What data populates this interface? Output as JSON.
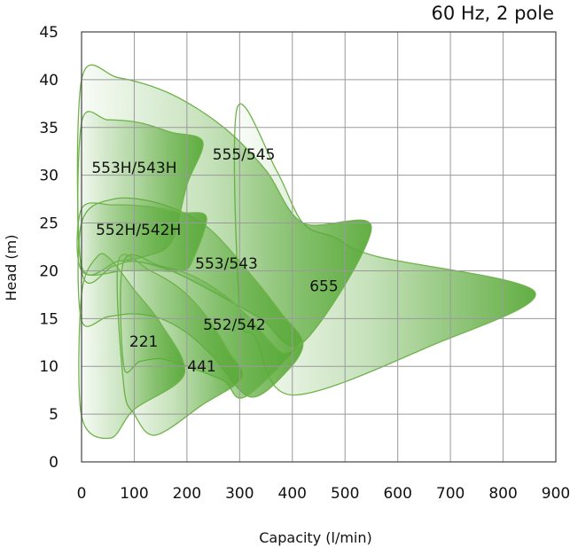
{
  "chart_data": {
    "type": "area",
    "title": "60 Hz, 2 pole",
    "xlabel": "Capacity (l/min)",
    "ylabel": "Head (m)",
    "xlim": [
      0,
      900
    ],
    "ylim": [
      0,
      45
    ],
    "x_ticks": [
      "0",
      "100",
      "200",
      "300",
      "400",
      "500",
      "600",
      "700",
      "800",
      "900"
    ],
    "y_ticks": [
      "0",
      "5",
      "10",
      "15",
      "20",
      "25",
      "30",
      "35",
      "40",
      "45"
    ],
    "grid": true,
    "colors": {
      "fill": "#5aaa3a",
      "stroke": "#6fb34a"
    },
    "series": [
      {
        "name": "655",
        "label_pos": [
          460,
          18.4
        ],
        "points": [
          [
            295,
            37
          ],
          [
            370,
            30.5
          ],
          [
            420,
            25
          ],
          [
            480,
            23.5
          ],
          [
            560,
            21.5
          ],
          [
            860,
            17.8
          ],
          [
            665,
            12.2
          ],
          [
            400,
            7
          ],
          [
            330,
            13
          ],
          [
            300,
            16
          ]
        ]
      },
      {
        "name": "555/545",
        "label_pos": [
          308,
          32.2
        ],
        "points": [
          [
            0,
            40
          ],
          [
            70,
            40.2
          ],
          [
            170,
            38.5
          ],
          [
            270,
            35
          ],
          [
            350,
            30.5
          ],
          [
            420,
            25
          ],
          [
            550,
            24.5
          ],
          [
            420,
            12.5
          ],
          [
            340,
            15
          ],
          [
            250,
            17.8
          ],
          [
            170,
            20
          ],
          [
            100,
            21
          ],
          [
            60,
            20.5
          ],
          [
            0,
            20
          ]
        ]
      },
      {
        "name": "553/543",
        "label_pos": [
          275,
          20.8
        ],
        "points": [
          [
            0,
            25
          ],
          [
            60,
            27.5
          ],
          [
            150,
            27
          ],
          [
            240,
            24.5
          ],
          [
            330,
            19
          ],
          [
            380,
            15.5
          ],
          [
            420,
            12.5
          ],
          [
            390,
            9.5
          ],
          [
            320,
            6.8
          ],
          [
            250,
            11
          ],
          [
            200,
            13.5
          ],
          [
            150,
            15
          ],
          [
            100,
            15.5
          ],
          [
            50,
            15.2
          ],
          [
            0,
            14.8
          ]
        ]
      },
      {
        "name": "552/542",
        "label_pos": [
          290,
          14.4
        ],
        "points": [
          [
            80,
            21
          ],
          [
            150,
            20.5
          ],
          [
            210,
            19.5
          ],
          [
            270,
            17.5
          ],
          [
            320,
            15
          ],
          [
            380,
            11.5
          ],
          [
            420,
            12.5
          ],
          [
            310,
            6.8
          ],
          [
            270,
            8.5
          ],
          [
            200,
            10
          ],
          [
            150,
            10.8
          ],
          [
            110,
            10.5
          ],
          [
            80,
            10
          ]
        ]
      },
      {
        "name": "553H/543H",
        "label_pos": [
          100,
          30.8
        ],
        "points": [
          [
            0,
            35.5
          ],
          [
            50,
            35.8
          ],
          [
            110,
            35.5
          ],
          [
            170,
            34.5
          ],
          [
            230,
            33.5
          ],
          [
            200,
            29
          ],
          [
            170,
            23
          ],
          [
            120,
            21.5
          ],
          [
            70,
            21
          ],
          [
            0,
            20.5
          ]
        ]
      },
      {
        "name": "552H/542H",
        "label_pos": [
          108,
          24.3
        ],
        "points": [
          [
            0,
            26.5
          ],
          [
            60,
            26.9
          ],
          [
            130,
            26.7
          ],
          [
            190,
            26.1
          ],
          [
            237,
            25.6
          ],
          [
            210,
            21
          ],
          [
            190,
            20
          ],
          [
            140,
            20
          ],
          [
            80,
            20
          ],
          [
            0,
            20
          ]
        ]
      },
      {
        "name": "441",
        "label_pos": [
          228,
          10
        ],
        "points": [
          [
            70,
            21
          ],
          [
            130,
            20
          ],
          [
            190,
            18
          ],
          [
            240,
            15
          ],
          [
            280,
            11.5
          ],
          [
            305,
            8.8
          ],
          [
            230,
            6
          ],
          [
            140,
            2.8
          ],
          [
            100,
            5
          ],
          [
            80,
            8
          ]
        ]
      },
      {
        "name": "221",
        "label_pos": [
          118,
          12.6
        ],
        "points": [
          [
            0,
            17.5
          ],
          [
            30,
            21.5
          ],
          [
            55,
            21.2
          ],
          [
            100,
            18
          ],
          [
            150,
            14.5
          ],
          [
            195,
            9.2
          ],
          [
            100,
            5.5
          ],
          [
            55,
            2.5
          ],
          [
            0,
            4.8
          ]
        ]
      }
    ]
  }
}
